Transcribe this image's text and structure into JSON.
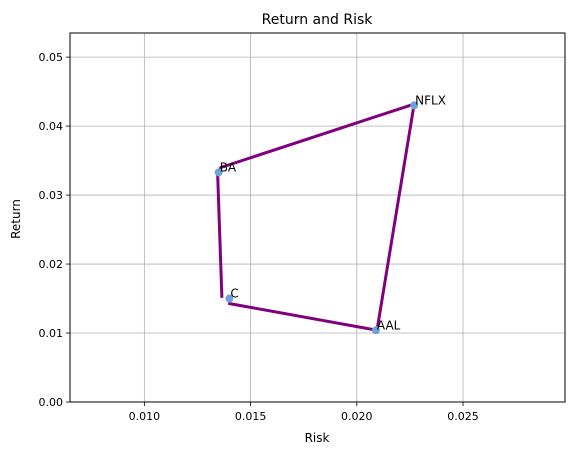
{
  "chart_data": {
    "type": "scatter",
    "title": "Return and Risk",
    "xlabel": "Risk",
    "ylabel": "Return",
    "xlim": [
      0.0065,
      0.0298
    ],
    "ylim": [
      0.0,
      0.0535
    ],
    "xticks": [
      0.01,
      0.015,
      0.02,
      0.025
    ],
    "xtick_labels": [
      "0.010",
      "0.015",
      "0.020",
      "0.025"
    ],
    "yticks": [
      0.0,
      0.01,
      0.02,
      0.03,
      0.04,
      0.05
    ],
    "ytick_labels": [
      "0.00",
      "0.01",
      "0.02",
      "0.03",
      "0.04",
      "0.05"
    ],
    "grid": true,
    "point_color": "#6fa3d8",
    "line_color": "#800080",
    "points": [
      {
        "label": "NFLX",
        "x": 0.0227,
        "y": 0.043
      },
      {
        "label": "BA",
        "x": 0.0135,
        "y": 0.0333
      },
      {
        "label": "C",
        "x": 0.014,
        "y": 0.015
      },
      {
        "label": "AAL",
        "x": 0.0209,
        "y": 0.0104
      }
    ],
    "path": [
      [
        0.01365,
        0.0151
      ],
      [
        0.01345,
        0.033
      ],
      [
        0.0136,
        0.034
      ],
      [
        0.0227,
        0.0432
      ],
      [
        0.02095,
        0.0104
      ],
      [
        0.01395,
        0.0143
      ]
    ]
  }
}
